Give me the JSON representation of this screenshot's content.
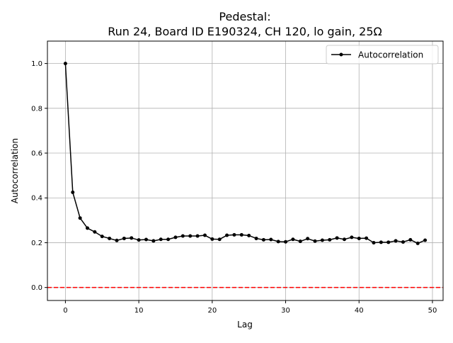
{
  "chart_data": {
    "type": "line",
    "title_line1": "Pedestal:",
    "title_line2": "Run 24, Board ID E190324, CH 120, lo gain, 25Ω",
    "xlabel": "Lag",
    "ylabel": "Autocorrelation",
    "xlim": [
      -2.45,
      51.45
    ],
    "ylim": [
      -0.058,
      1.1
    ],
    "xticks": [
      0,
      10,
      20,
      30,
      40,
      50
    ],
    "yticks": [
      0.0,
      0.2,
      0.4,
      0.6,
      0.8,
      1.0
    ],
    "xtick_labels": [
      "0",
      "10",
      "20",
      "30",
      "40",
      "50"
    ],
    "ytick_labels": [
      "0.0",
      "0.2",
      "0.4",
      "0.6",
      "0.8",
      "1.0"
    ],
    "grid": true,
    "legend_position": "top-right",
    "series": [
      {
        "name": "Autocorrelation",
        "color": "#000000",
        "marker": "circle",
        "x": [
          0,
          1,
          2,
          3,
          4,
          5,
          6,
          7,
          8,
          9,
          10,
          11,
          12,
          13,
          14,
          15,
          16,
          17,
          18,
          19,
          20,
          21,
          22,
          23,
          24,
          25,
          26,
          27,
          28,
          29,
          30,
          31,
          32,
          33,
          34,
          35,
          36,
          37,
          38,
          39,
          40,
          41,
          42,
          43,
          44,
          45,
          46,
          47,
          48,
          49
        ],
        "y": [
          1.0,
          0.425,
          0.31,
          0.265,
          0.248,
          0.228,
          0.219,
          0.21,
          0.219,
          0.221,
          0.212,
          0.214,
          0.208,
          0.215,
          0.215,
          0.224,
          0.23,
          0.23,
          0.23,
          0.233,
          0.216,
          0.215,
          0.233,
          0.235,
          0.235,
          0.232,
          0.219,
          0.213,
          0.214,
          0.205,
          0.204,
          0.215,
          0.206,
          0.218,
          0.207,
          0.211,
          0.213,
          0.221,
          0.215,
          0.224,
          0.219,
          0.22,
          0.2,
          0.202,
          0.202,
          0.208,
          0.203,
          0.213,
          0.197,
          0.211
        ]
      }
    ],
    "reference_line": {
      "y": 0.0,
      "color": "#ff0000",
      "style": "dashed"
    }
  }
}
